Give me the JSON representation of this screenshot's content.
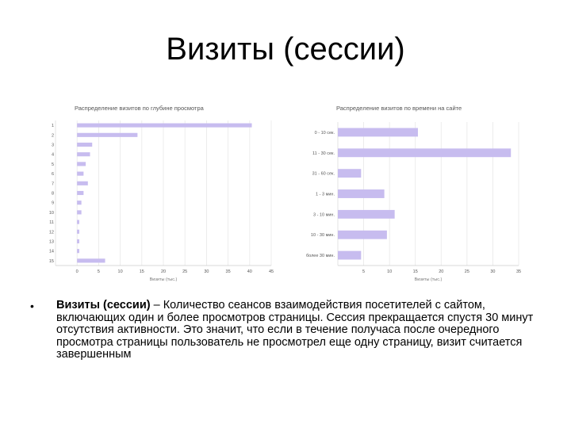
{
  "slide": {
    "title": "Визиты (сессии)",
    "bullet_marker": "•",
    "bullet_term": "Визиты (сессии)",
    "bullet_text": " – Количество сеансов взаимодействия посетителей с сайтом, включающих один и более просмотров страницы. Сессия прекращается спустя 30 минут отсутствия активности. Это значит, что если в течение получаса после очередного просмотра страницы пользователь не просмотрел еще одну страницу, визит считается завершенным"
  },
  "chart_data": [
    {
      "type": "bar",
      "orientation": "horizontal",
      "title": "Распределение визитов по глубине просмотра",
      "xlabel": "Визиты (тыс.)",
      "ylabel": "",
      "categories": [
        "1",
        "2",
        "3",
        "4",
        "5",
        "6",
        "7",
        "8",
        "9",
        "10",
        "11",
        "12",
        "13",
        "14",
        "15"
      ],
      "values": [
        40.5,
        14,
        3.5,
        3,
        2,
        1.5,
        2.5,
        1.5,
        1,
        1,
        0.5,
        0.5,
        0.5,
        0.5,
        6.5
      ],
      "xticks": [
        0,
        5,
        10,
        15,
        20,
        25,
        30,
        35,
        40,
        45
      ],
      "xlim": [
        -5,
        45
      ],
      "grid": true,
      "bar_color": "#c7bcef"
    },
    {
      "type": "bar",
      "orientation": "horizontal",
      "title": "Распределение визитов по времени на сайте",
      "xlabel": "Визиты (тыс.)",
      "ylabel": "",
      "categories": [
        "0 - 10 сек.",
        "11 - 30 сек.",
        "31 - 60 сек.",
        "1 - 3 мин.",
        "3 - 10 мин.",
        "10 - 30 мин.",
        "более 30 мин."
      ],
      "values": [
        15.5,
        33.5,
        4.5,
        9,
        11,
        9.5,
        4.5
      ],
      "xticks": [
        5,
        10,
        15,
        20,
        25,
        30,
        35
      ],
      "xlim": [
        0,
        35
      ],
      "grid": true,
      "bar_color": "#c7bcef"
    }
  ]
}
